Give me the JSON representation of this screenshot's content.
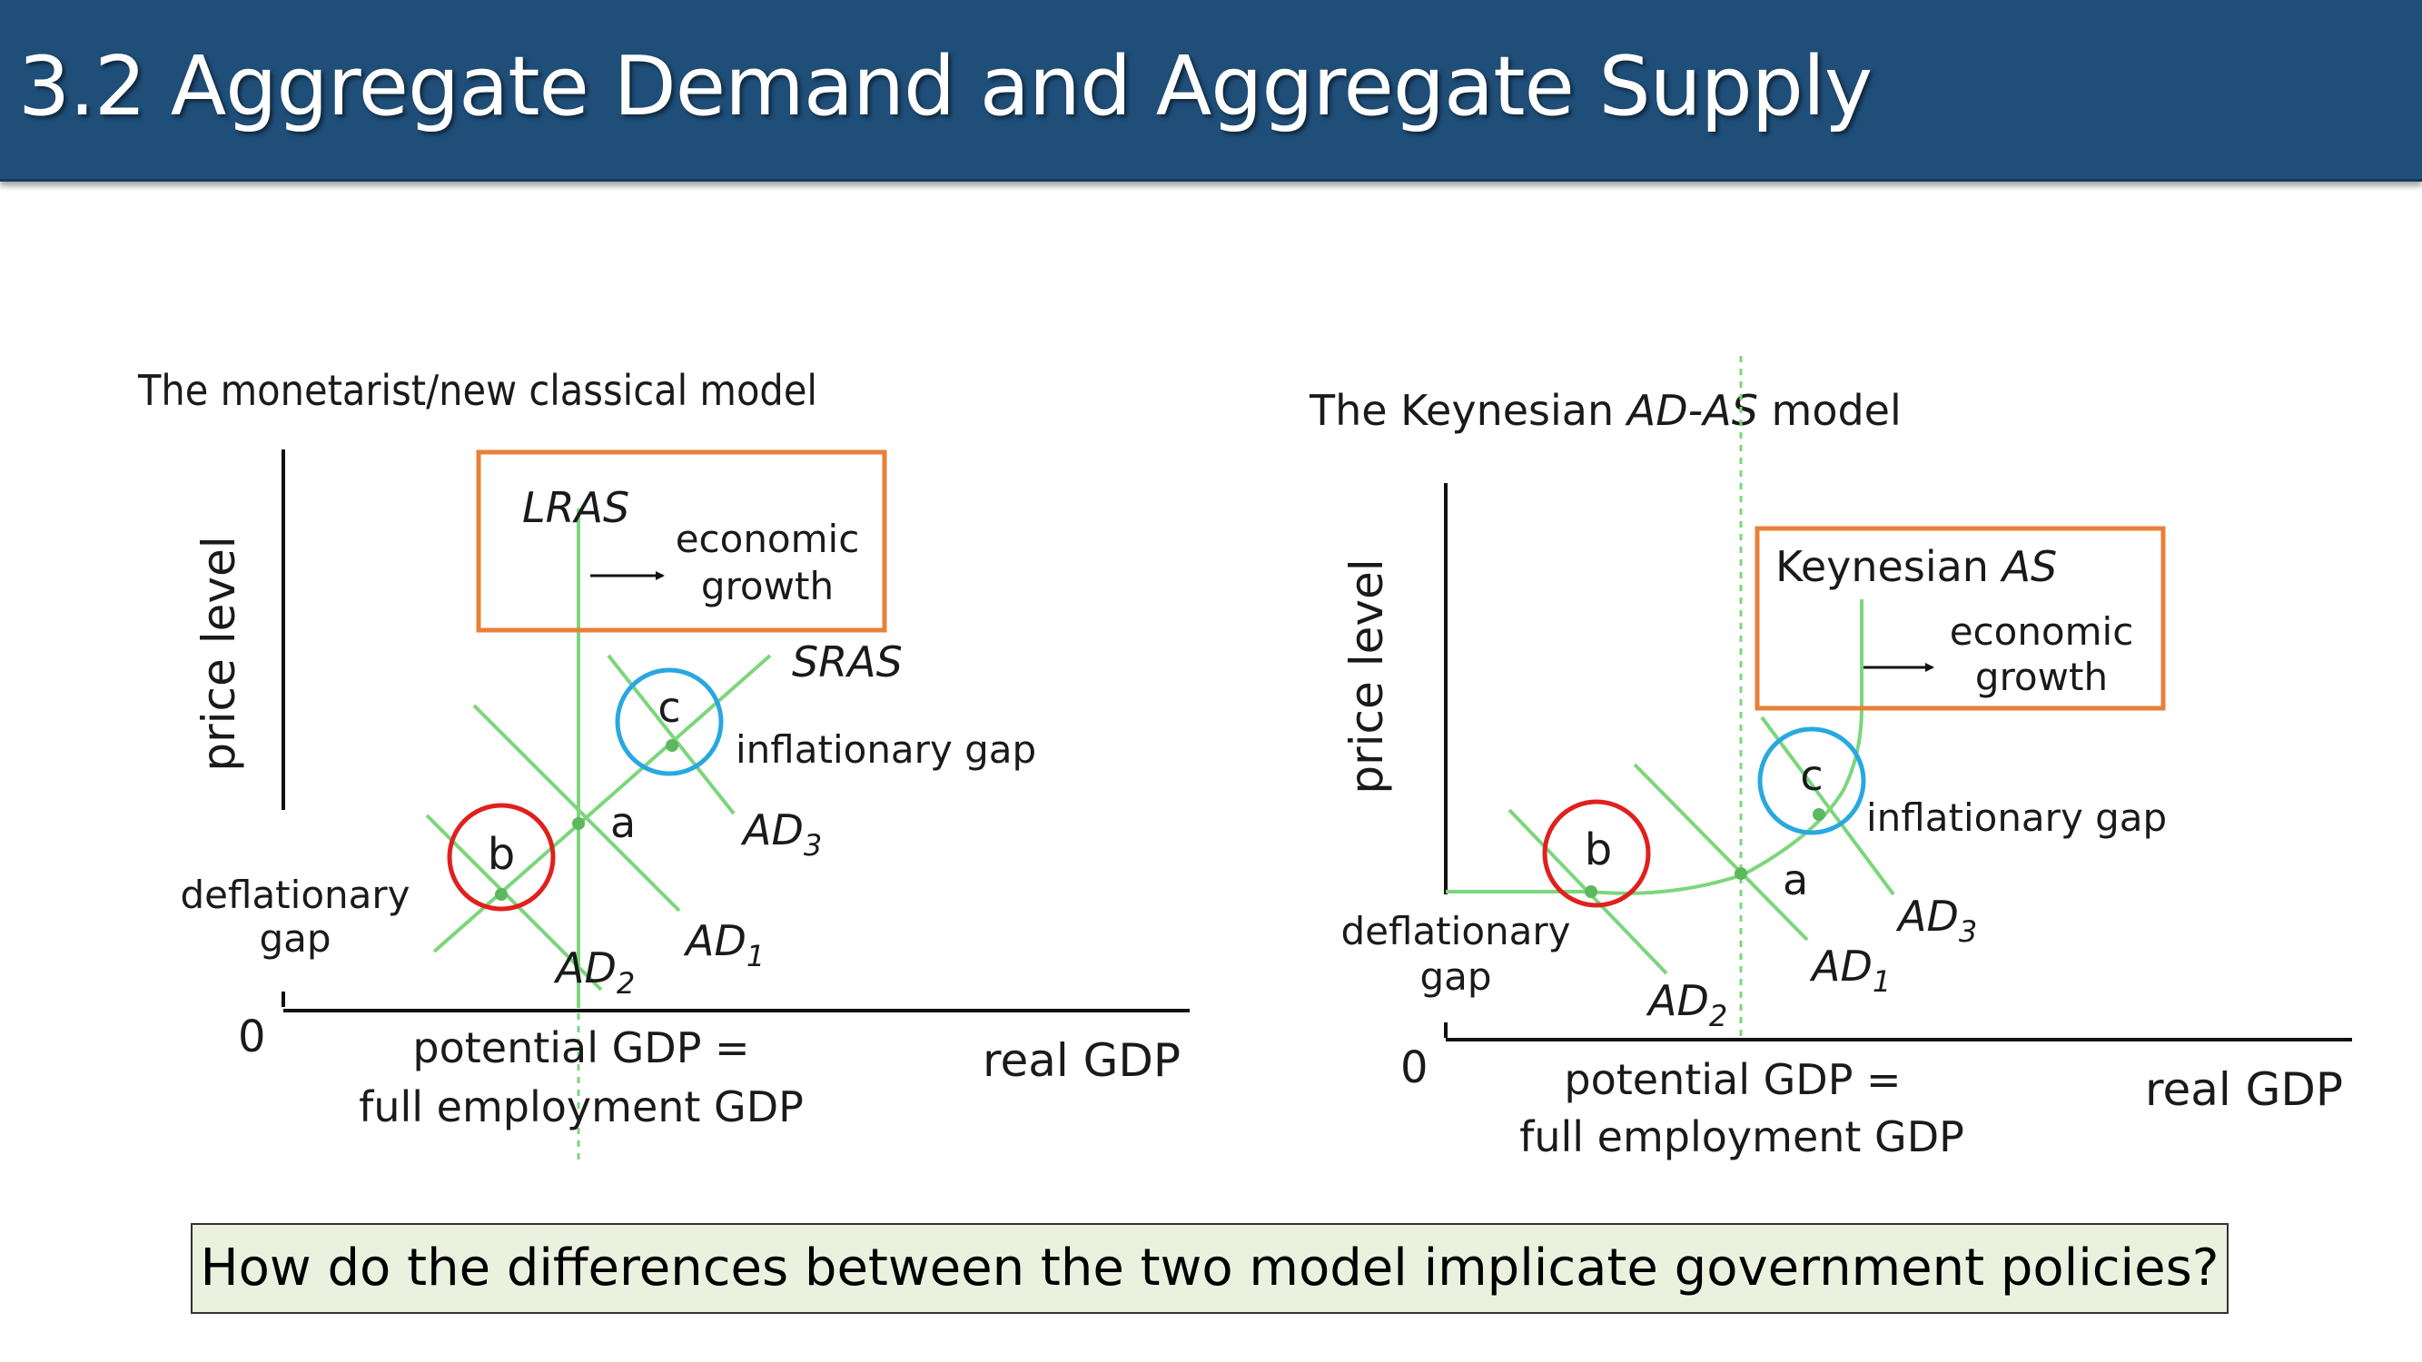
{
  "slide": {
    "title": "3.2 Aggregate Demand and Aggregate Supply",
    "question": "How do the differences between the two model implicate government policies?"
  },
  "colors": {
    "header_bg": "#1f4e79",
    "curve": "#7cd67c",
    "highlight_box": "#e8803a",
    "circle_b": "#e0201e",
    "circle_c": "#29a8e0",
    "question_bg": "#ebf1de"
  },
  "left_diagram": {
    "title": "The monetarist/new classical model",
    "y_axis_label": "price level",
    "x_axis_label": "real GDP",
    "origin": "0",
    "potential_gdp_line1": "potential GDP =",
    "potential_gdp_line2": "full employment GDP",
    "lras": "LRAS",
    "growth_line1": "economic",
    "growth_line2": "growth",
    "sras": "SRAS",
    "point_a": "a",
    "point_b": "b",
    "point_c": "c",
    "inflationary_gap": "inflationary gap",
    "deflationary_line1": "deflationary",
    "deflationary_line2": "gap",
    "ad1": "AD",
    "ad1_sub": "1",
    "ad2": "AD",
    "ad2_sub": "2",
    "ad3": "AD",
    "ad3_sub": "3"
  },
  "right_diagram": {
    "title_prefix": "The Keynesian ",
    "title_italic": "AD-AS",
    "title_suffix": " model",
    "y_axis_label": "price level",
    "x_axis_label": "real GDP",
    "origin": "0",
    "potential_gdp_line1": "potential GDP =",
    "potential_gdp_line2": "full employment GDP",
    "keynesian_as_prefix": "Keynesian ",
    "keynesian_as_italic": "AS",
    "growth_line1": "economic",
    "growth_line2": "growth",
    "point_a": "a",
    "point_b": "b",
    "point_c": "c",
    "inflationary_gap": "inflationary gap",
    "deflationary_line1": "deflationary",
    "deflationary_line2": "gap",
    "ad1": "AD",
    "ad1_sub": "1",
    "ad2": "AD",
    "ad2_sub": "2",
    "ad3": "AD",
    "ad3_sub": "3"
  }
}
